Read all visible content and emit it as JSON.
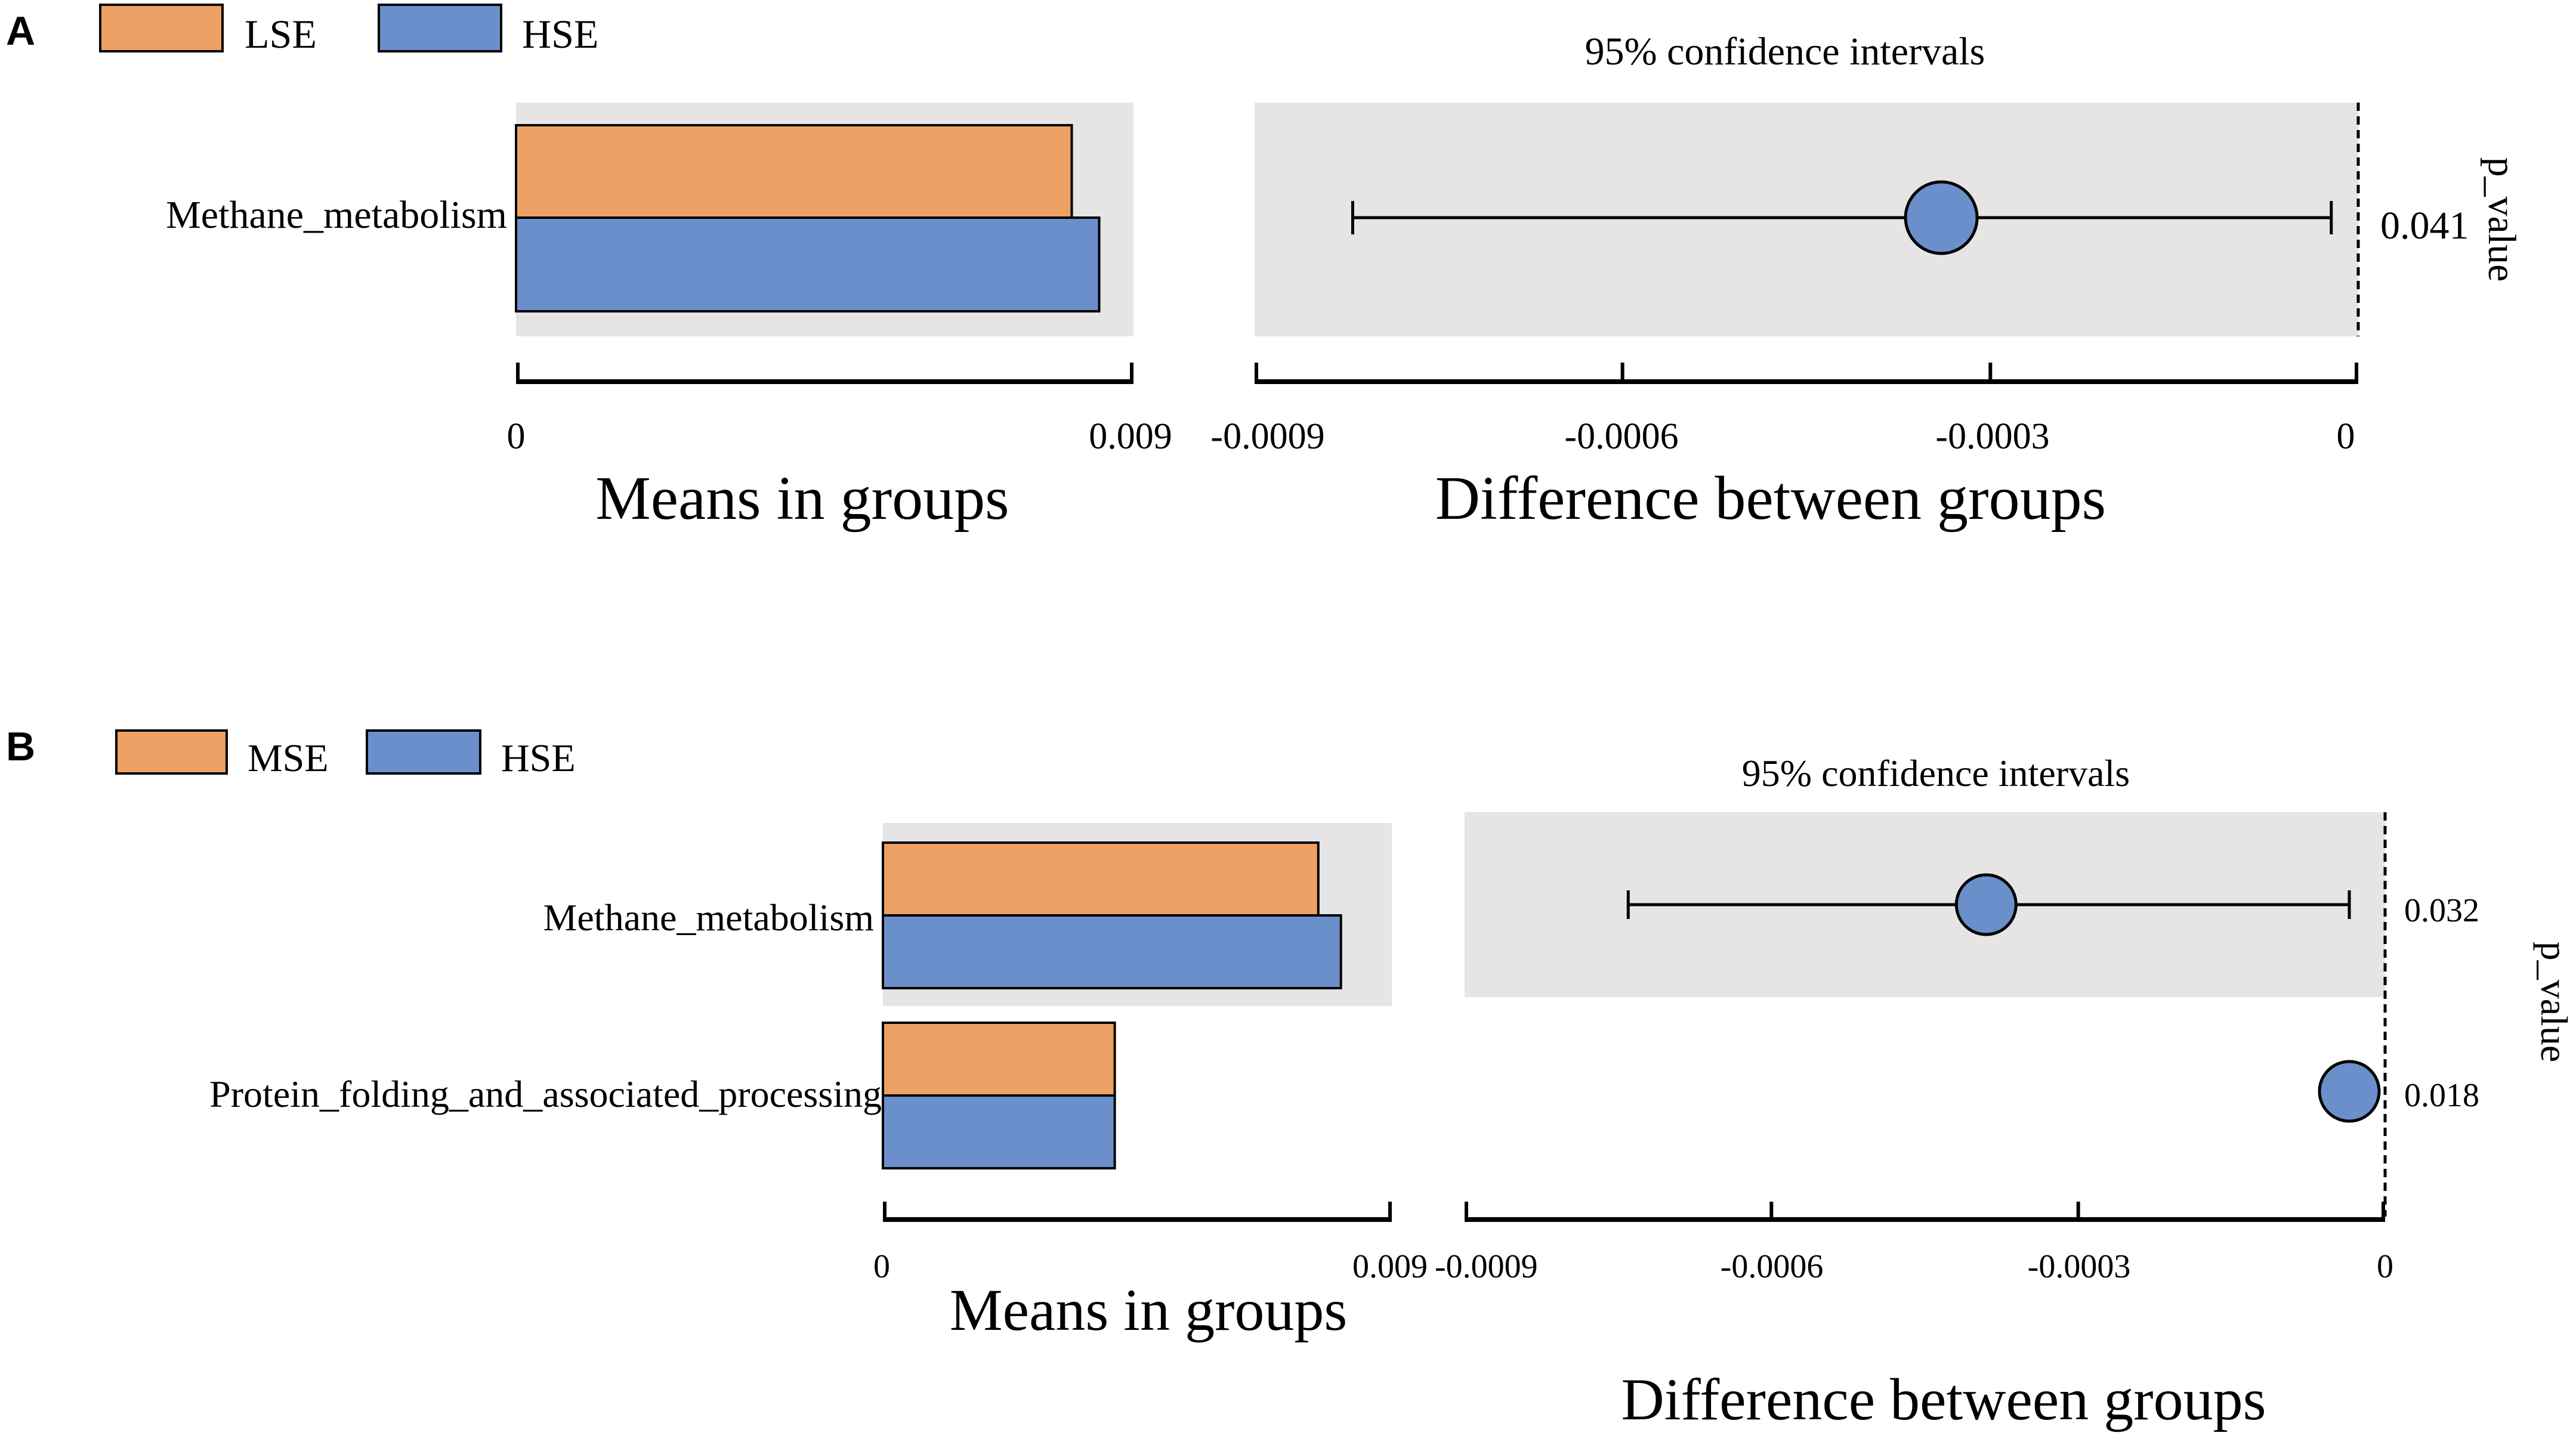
{
  "colors": {
    "group1": "#EDA063",
    "group2": "#6A8FCB",
    "panel_bg": "#E6E4E4",
    "ink": "#000000"
  },
  "chart_data": [
    {
      "type": "bar",
      "panel_label": "A",
      "legend": [
        "LSE",
        "HSE"
      ],
      "categories": [
        "Methane_metabolism"
      ],
      "series": [
        {
          "name": "LSE",
          "values": [
            0.0081
          ]
        },
        {
          "name": "HSE",
          "values": [
            0.0085
          ]
        }
      ],
      "means_axis": {
        "xlabel": "Means in groups",
        "xlim": [
          0,
          0.009
        ],
        "ticks": [
          "0",
          "0.009"
        ]
      },
      "ci": {
        "title": "95% confidence intervals",
        "estimates": [
          -0.00034
        ],
        "lower": [
          -0.00082
        ],
        "upper": [
          -2.2e-05
        ],
        "xlabel": "Difference between groups",
        "xlim": [
          -0.0009,
          0
        ],
        "tick_values": [
          -0.0009,
          -0.0006,
          -0.0003,
          0
        ],
        "ticks": [
          "-0.0009",
          "-0.0006",
          "-0.0003",
          "0"
        ]
      },
      "p_values": [
        "0.041"
      ],
      "p_label": "p_value"
    },
    {
      "type": "bar",
      "panel_label": "B",
      "legend": [
        "MSE",
        "HSE"
      ],
      "categories": [
        "Methane_metabolism",
        "Protein_folding_and_associated_processing"
      ],
      "series": [
        {
          "name": "MSE",
          "values": [
            0.0077,
            0.0041
          ]
        },
        {
          "name": "HSE",
          "values": [
            0.0081,
            0.0041
          ]
        }
      ],
      "means_axis": {
        "xlabel": "Means in groups",
        "xlim": [
          0,
          0.009
        ],
        "ticks": [
          "0",
          "0.009"
        ]
      },
      "ci": {
        "title": "95% confidence intervals",
        "estimates": [
          -0.00039,
          -3.5e-05
        ],
        "lower": [
          -0.00074,
          -3.5e-05
        ],
        "upper": [
          -3.5e-05,
          -3.5e-05
        ],
        "xlabel": "Difference between groups",
        "xlim": [
          -0.0009,
          0
        ],
        "tick_values": [
          -0.0009,
          -0.0006,
          -0.0003,
          0
        ],
        "ticks": [
          "-0.0009",
          "-0.0006",
          "-0.0003",
          "0"
        ]
      },
      "p_values": [
        "0.032",
        "0.018"
      ],
      "p_label": "p_value"
    }
  ]
}
